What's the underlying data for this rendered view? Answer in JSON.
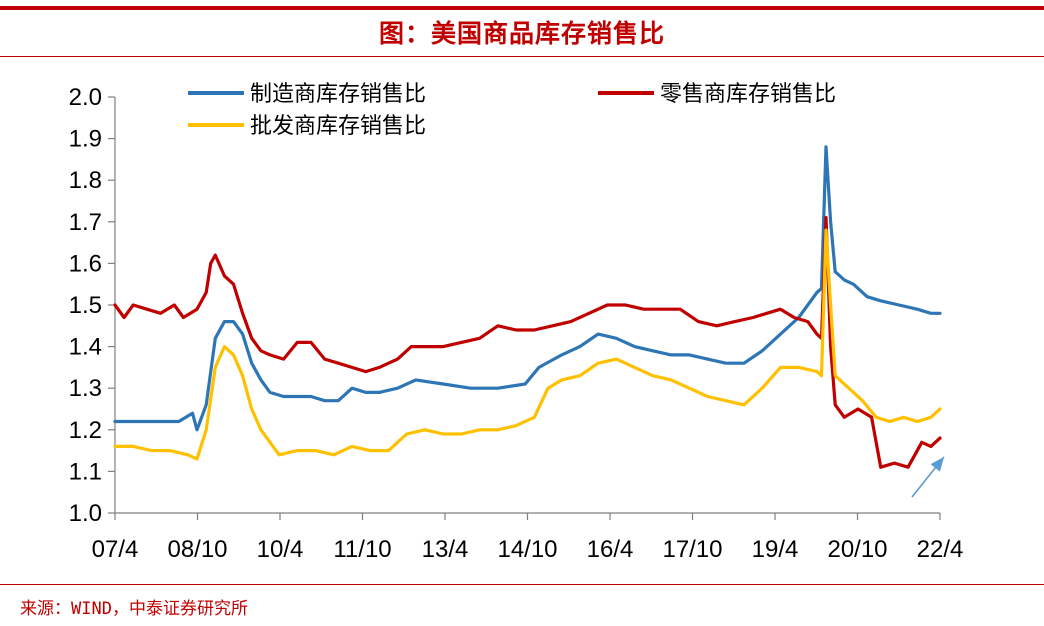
{
  "header": {
    "title": "图：美国商品库存销售比"
  },
  "footer": {
    "source": "来源：WIND，中泰证券研究所"
  },
  "colors": {
    "accent": "#c00000",
    "arrow": "#5b9bd5"
  },
  "chart_data": {
    "type": "line",
    "title": "图：美国商品库存销售比",
    "xlabel": "",
    "ylabel": "",
    "ylim": [
      1.0,
      2.0
    ],
    "yticks": [
      "1.0",
      "1.1",
      "1.2",
      "1.3",
      "1.4",
      "1.5",
      "1.6",
      "1.7",
      "1.8",
      "1.9",
      "2.0"
    ],
    "xticks": [
      "07/4",
      "08/10",
      "10/4",
      "11/10",
      "13/4",
      "14/10",
      "16/4",
      "17/10",
      "19/4",
      "20/10",
      "22/4"
    ],
    "x_range": [
      "2007-04",
      "2022-05"
    ],
    "grid": false,
    "legend_position": "top",
    "annotations": [
      {
        "type": "arrow",
        "direction": "up-right",
        "near": "22/4"
      }
    ],
    "series": [
      {
        "name": "制造商库存销售比",
        "color": "#2e75b6",
        "points": [
          [
            "2007-04",
            1.22
          ],
          [
            "2008-02",
            1.22
          ],
          [
            "2008-06",
            1.22
          ],
          [
            "2008-09",
            1.24
          ],
          [
            "2008-10",
            1.2
          ],
          [
            "2008-12",
            1.26
          ],
          [
            "2009-02",
            1.42
          ],
          [
            "2009-04",
            1.46
          ],
          [
            "2009-06",
            1.46
          ],
          [
            "2009-08",
            1.43
          ],
          [
            "2009-10",
            1.36
          ],
          [
            "2009-12",
            1.32
          ],
          [
            "2010-02",
            1.29
          ],
          [
            "2010-05",
            1.28
          ],
          [
            "2010-08",
            1.28
          ],
          [
            "2010-11",
            1.28
          ],
          [
            "2011-02",
            1.27
          ],
          [
            "2011-05",
            1.27
          ],
          [
            "2011-08",
            1.3
          ],
          [
            "2011-11",
            1.29
          ],
          [
            "2012-02",
            1.29
          ],
          [
            "2012-06",
            1.3
          ],
          [
            "2012-10",
            1.32
          ],
          [
            "2013-04",
            1.31
          ],
          [
            "2013-10",
            1.3
          ],
          [
            "2014-04",
            1.3
          ],
          [
            "2014-10",
            1.31
          ],
          [
            "2015-01",
            1.35
          ],
          [
            "2015-06",
            1.38
          ],
          [
            "2015-10",
            1.4
          ],
          [
            "2016-02",
            1.43
          ],
          [
            "2016-06",
            1.42
          ],
          [
            "2016-10",
            1.4
          ],
          [
            "2017-02",
            1.39
          ],
          [
            "2017-06",
            1.38
          ],
          [
            "2017-10",
            1.38
          ],
          [
            "2018-02",
            1.37
          ],
          [
            "2018-06",
            1.36
          ],
          [
            "2018-10",
            1.36
          ],
          [
            "2019-02",
            1.39
          ],
          [
            "2019-06",
            1.43
          ],
          [
            "2019-10",
            1.47
          ],
          [
            "2020-02",
            1.53
          ],
          [
            "2020-03",
            1.54
          ],
          [
            "2020-04",
            1.88
          ],
          [
            "2020-05",
            1.7
          ],
          [
            "2020-06",
            1.58
          ],
          [
            "2020-08",
            1.56
          ],
          [
            "2020-10",
            1.55
          ],
          [
            "2021-01",
            1.52
          ],
          [
            "2021-04",
            1.51
          ],
          [
            "2021-08",
            1.5
          ],
          [
            "2021-12",
            1.49
          ],
          [
            "2022-03",
            1.48
          ],
          [
            "2022-05",
            1.48
          ]
        ]
      },
      {
        "name": "零售商库存销售比",
        "color": "#c00000",
        "points": [
          [
            "2007-04",
            1.5
          ],
          [
            "2007-06",
            1.47
          ],
          [
            "2007-08",
            1.5
          ],
          [
            "2007-11",
            1.49
          ],
          [
            "2008-02",
            1.48
          ],
          [
            "2008-05",
            1.5
          ],
          [
            "2008-07",
            1.47
          ],
          [
            "2008-10",
            1.49
          ],
          [
            "2008-12",
            1.53
          ],
          [
            "2009-01",
            1.6
          ],
          [
            "2009-02",
            1.62
          ],
          [
            "2009-04",
            1.57
          ],
          [
            "2009-06",
            1.55
          ],
          [
            "2009-08",
            1.48
          ],
          [
            "2009-10",
            1.42
          ],
          [
            "2009-12",
            1.39
          ],
          [
            "2010-02",
            1.38
          ],
          [
            "2010-05",
            1.37
          ],
          [
            "2010-08",
            1.41
          ],
          [
            "2010-11",
            1.41
          ],
          [
            "2011-02",
            1.37
          ],
          [
            "2011-05",
            1.36
          ],
          [
            "2011-08",
            1.35
          ],
          [
            "2011-11",
            1.34
          ],
          [
            "2012-02",
            1.35
          ],
          [
            "2012-06",
            1.37
          ],
          [
            "2012-09",
            1.4
          ],
          [
            "2012-12",
            1.4
          ],
          [
            "2013-04",
            1.4
          ],
          [
            "2013-08",
            1.41
          ],
          [
            "2013-12",
            1.42
          ],
          [
            "2014-04",
            1.45
          ],
          [
            "2014-08",
            1.44
          ],
          [
            "2014-12",
            1.44
          ],
          [
            "2015-04",
            1.45
          ],
          [
            "2015-08",
            1.46
          ],
          [
            "2015-12",
            1.48
          ],
          [
            "2016-04",
            1.5
          ],
          [
            "2016-08",
            1.5
          ],
          [
            "2016-12",
            1.49
          ],
          [
            "2017-04",
            1.49
          ],
          [
            "2017-08",
            1.49
          ],
          [
            "2017-12",
            1.46
          ],
          [
            "2018-04",
            1.45
          ],
          [
            "2018-08",
            1.46
          ],
          [
            "2018-12",
            1.47
          ],
          [
            "2019-03",
            1.48
          ],
          [
            "2019-06",
            1.49
          ],
          [
            "2019-09",
            1.47
          ],
          [
            "2019-12",
            1.46
          ],
          [
            "2020-02",
            1.43
          ],
          [
            "2020-03",
            1.42
          ],
          [
            "2020-04",
            1.71
          ],
          [
            "2020-05",
            1.4
          ],
          [
            "2020-06",
            1.26
          ],
          [
            "2020-08",
            1.23
          ],
          [
            "2020-11",
            1.25
          ],
          [
            "2021-02",
            1.23
          ],
          [
            "2021-04",
            1.11
          ],
          [
            "2021-07",
            1.12
          ],
          [
            "2021-10",
            1.11
          ],
          [
            "2022-01",
            1.17
          ],
          [
            "2022-03",
            1.16
          ],
          [
            "2022-05",
            1.18
          ]
        ]
      },
      {
        "name": "批发商库存销售比",
        "color": "#ffc000",
        "points": [
          [
            "2007-04",
            1.16
          ],
          [
            "2007-08",
            1.16
          ],
          [
            "2007-12",
            1.15
          ],
          [
            "2008-04",
            1.15
          ],
          [
            "2008-08",
            1.14
          ],
          [
            "2008-10",
            1.13
          ],
          [
            "2008-12",
            1.2
          ],
          [
            "2009-02",
            1.35
          ],
          [
            "2009-04",
            1.4
          ],
          [
            "2009-06",
            1.38
          ],
          [
            "2009-08",
            1.33
          ],
          [
            "2009-10",
            1.25
          ],
          [
            "2009-12",
            1.2
          ],
          [
            "2010-04",
            1.14
          ],
          [
            "2010-08",
            1.15
          ],
          [
            "2010-12",
            1.15
          ],
          [
            "2011-04",
            1.14
          ],
          [
            "2011-08",
            1.16
          ],
          [
            "2011-12",
            1.15
          ],
          [
            "2012-04",
            1.15
          ],
          [
            "2012-08",
            1.19
          ],
          [
            "2012-12",
            1.2
          ],
          [
            "2013-04",
            1.19
          ],
          [
            "2013-08",
            1.19
          ],
          [
            "2013-12",
            1.2
          ],
          [
            "2014-04",
            1.2
          ],
          [
            "2014-08",
            1.21
          ],
          [
            "2014-12",
            1.23
          ],
          [
            "2015-03",
            1.3
          ],
          [
            "2015-06",
            1.32
          ],
          [
            "2015-10",
            1.33
          ],
          [
            "2016-02",
            1.36
          ],
          [
            "2016-06",
            1.37
          ],
          [
            "2016-10",
            1.35
          ],
          [
            "2017-02",
            1.33
          ],
          [
            "2017-06",
            1.32
          ],
          [
            "2017-10",
            1.3
          ],
          [
            "2018-02",
            1.28
          ],
          [
            "2018-06",
            1.27
          ],
          [
            "2018-10",
            1.26
          ],
          [
            "2019-02",
            1.3
          ],
          [
            "2019-06",
            1.35
          ],
          [
            "2019-10",
            1.35
          ],
          [
            "2020-02",
            1.34
          ],
          [
            "2020-03",
            1.33
          ],
          [
            "2020-04",
            1.68
          ],
          [
            "2020-05",
            1.5
          ],
          [
            "2020-06",
            1.33
          ],
          [
            "2020-09",
            1.3
          ],
          [
            "2020-12",
            1.27
          ],
          [
            "2021-03",
            1.23
          ],
          [
            "2021-06",
            1.22
          ],
          [
            "2021-09",
            1.23
          ],
          [
            "2021-12",
            1.22
          ],
          [
            "2022-03",
            1.23
          ],
          [
            "2022-05",
            1.25
          ]
        ]
      }
    ]
  }
}
